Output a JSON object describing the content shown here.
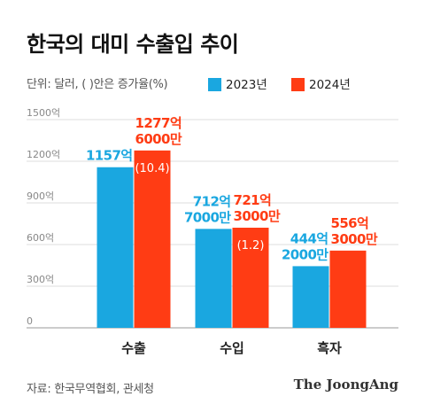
{
  "title": "한국의 대미 수출입 추이",
  "unit_note": "단위: 달러, (  )안은 증가율(%)",
  "source": "자료: 한국무역협회, 관세청",
  "brand": "The JoongAng",
  "colors": {
    "y2023": "#1aa7e0",
    "y2024": "#ff3c14"
  },
  "chart_data": {
    "type": "bar",
    "categories": [
      "수출",
      "수입",
      "흑자"
    ],
    "ylim": [
      0,
      1500
    ],
    "yticks": [
      {
        "value": 0,
        "label": "0"
      },
      {
        "value": 300,
        "label": "300억"
      },
      {
        "value": 600,
        "label": "600억"
      },
      {
        "value": 900,
        "label": "900억"
      },
      {
        "value": 1200,
        "label": "1200억"
      },
      {
        "value": 1500,
        "label": "1500억"
      }
    ],
    "grid": true,
    "legend_position": "top-right",
    "series": [
      {
        "name": "2023년",
        "color": "#1aa7e0",
        "values": [
          1157,
          712.7,
          444.2
        ],
        "labels": [
          [
            "1157억"
          ],
          [
            "712억",
            "7000만"
          ],
          [
            "444억",
            "2000만"
          ]
        ]
      },
      {
        "name": "2024년",
        "color": "#ff3c14",
        "values": [
          1277.6,
          721.3,
          556.3
        ],
        "labels": [
          [
            "1277억",
            "6000만"
          ],
          [
            "721억",
            "3000만"
          ],
          [
            "556억",
            "3000만"
          ]
        ],
        "growth": [
          "(10.4)",
          "(1.2)",
          null
        ]
      }
    ]
  }
}
